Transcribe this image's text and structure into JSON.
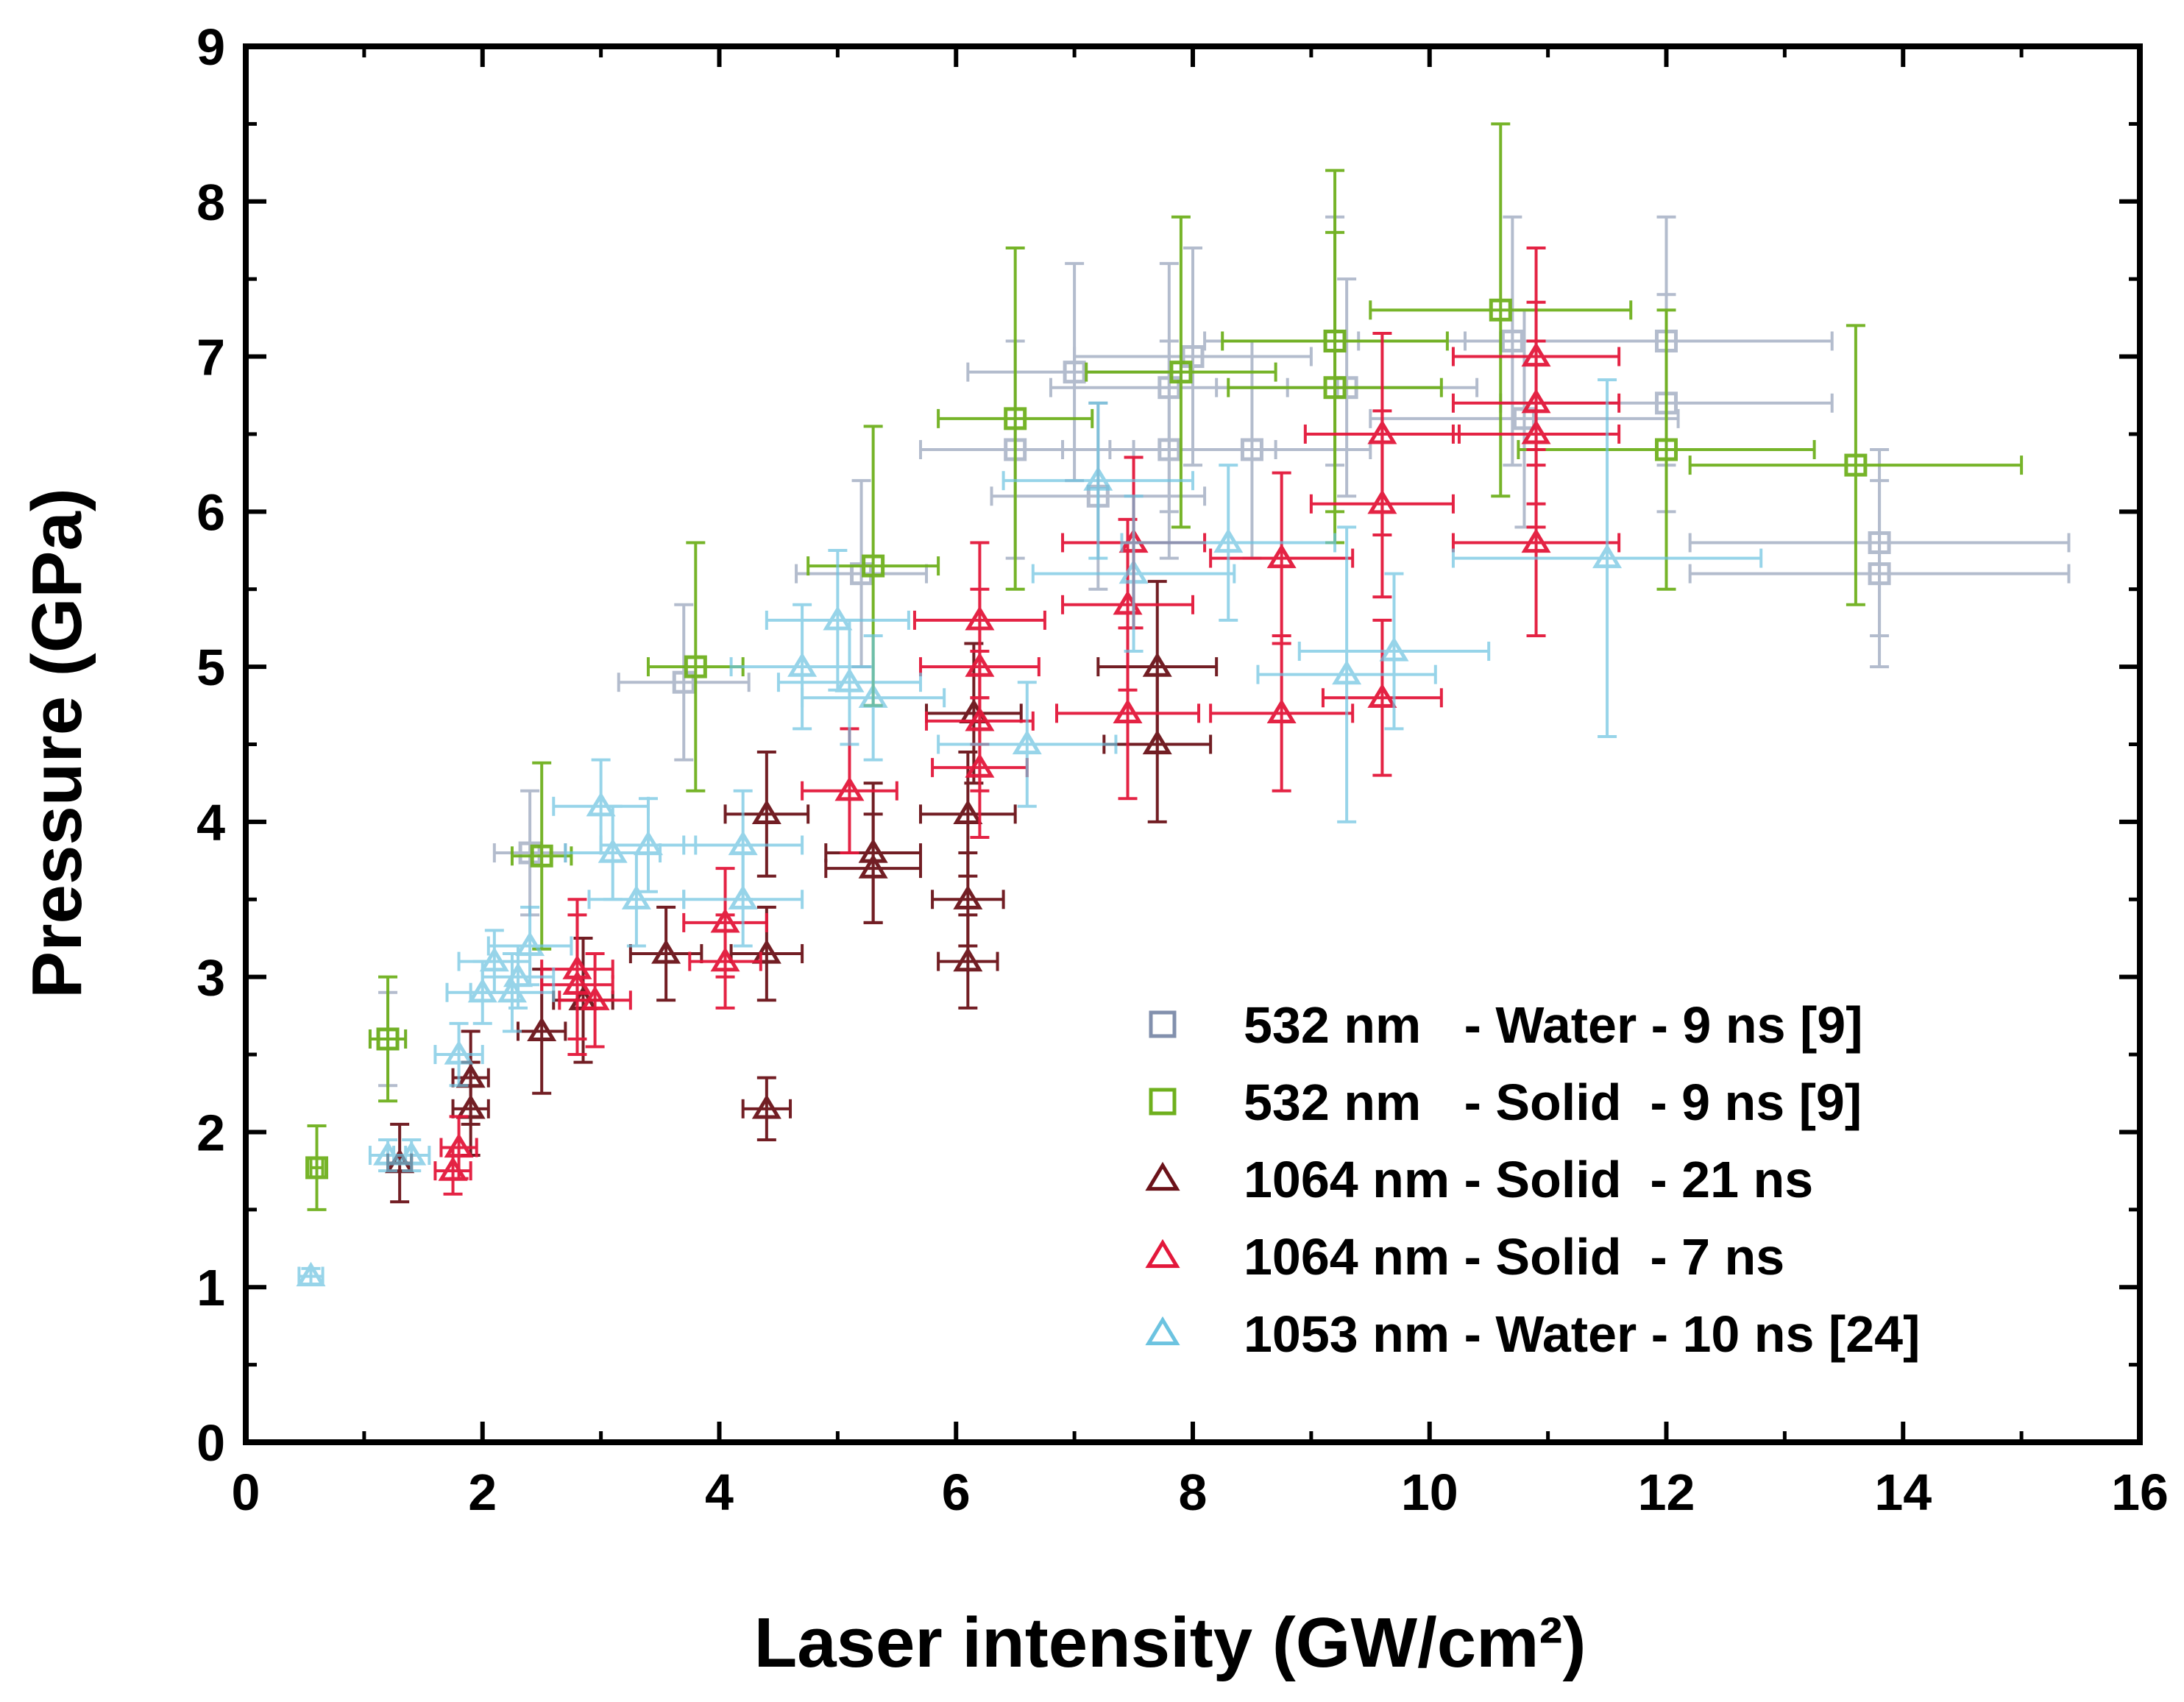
{
  "chart_data": {
    "type": "scatter",
    "title": "",
    "xlabel": "Laser intensity (GW/cm²)",
    "ylabel": "Pressure (GPa)",
    "xlim": [
      0,
      16
    ],
    "ylim": [
      0,
      9
    ],
    "x_ticks": [
      0,
      2,
      4,
      6,
      8,
      10,
      12,
      14,
      16
    ],
    "y_ticks": [
      0,
      1,
      2,
      3,
      4,
      5,
      6,
      7,
      8,
      9
    ],
    "x_tick_labels": [
      "0",
      "2",
      "4",
      "6",
      "8",
      "10",
      "12",
      "14",
      "16"
    ],
    "y_tick_labels": [
      "0",
      "1",
      "2",
      "3",
      "4",
      "5",
      "6",
      "7",
      "8",
      "9"
    ],
    "legend_position": "bottom-right",
    "grid": false,
    "series": [
      {
        "name": "532 nm   - Water - 9 ns [9]",
        "marker": "square",
        "color": "#8290ad",
        "points": [
          {
            "x": 1.2,
            "y": 2.6,
            "xerr": 0.15,
            "yerr": 0.3
          },
          {
            "x": 2.4,
            "y": 3.8,
            "xerr": 0.3,
            "yerr": 0.4
          },
          {
            "x": 3.7,
            "y": 4.9,
            "xerr": 0.55,
            "yerr": 0.5
          },
          {
            "x": 5.2,
            "y": 5.6,
            "xerr": 0.55,
            "yerr": 0.6
          },
          {
            "x": 6.5,
            "y": 6.4,
            "xerr": 0.8,
            "yerr": 0.7
          },
          {
            "x": 7.0,
            "y": 6.9,
            "xerr": 0.9,
            "yerr": 0.7
          },
          {
            "x": 7.2,
            "y": 6.1,
            "xerr": 0.9,
            "yerr": 0.6
          },
          {
            "x": 7.8,
            "y": 6.8,
            "xerr": 1.0,
            "yerr": 0.8
          },
          {
            "x": 7.8,
            "y": 6.4,
            "xerr": 0.9,
            "yerr": 0.7
          },
          {
            "x": 8.0,
            "y": 7.0,
            "xerr": 1.0,
            "yerr": 0.7
          },
          {
            "x": 8.5,
            "y": 6.4,
            "xerr": 1.0,
            "yerr": 0.7
          },
          {
            "x": 9.2,
            "y": 7.1,
            "xerr": 1.1,
            "yerr": 0.8
          },
          {
            "x": 9.3,
            "y": 6.8,
            "xerr": 1.1,
            "yerr": 0.7
          },
          {
            "x": 10.7,
            "y": 7.1,
            "xerr": 1.3,
            "yerr": 0.8
          },
          {
            "x": 10.8,
            "y": 6.6,
            "xerr": 1.3,
            "yerr": 0.7
          },
          {
            "x": 12.0,
            "y": 7.1,
            "xerr": 1.4,
            "yerr": 0.8
          },
          {
            "x": 12.0,
            "y": 6.7,
            "xerr": 1.4,
            "yerr": 0.7
          },
          {
            "x": 13.8,
            "y": 5.8,
            "xerr": 1.6,
            "yerr": 0.6
          },
          {
            "x": 13.8,
            "y": 5.6,
            "xerr": 1.6,
            "yerr": 0.6
          }
        ]
      },
      {
        "name": "532 nm   - Solid  - 9 ns [9]",
        "marker": "square",
        "color": "#6fb01e",
        "points": [
          {
            "x": 0.6,
            "y": 1.77,
            "xerr": 0.05,
            "yerr": 0.27
          },
          {
            "x": 1.2,
            "y": 2.6,
            "xerr": 0.15,
            "yerr": 0.4
          },
          {
            "x": 2.5,
            "y": 3.78,
            "xerr": 0.25,
            "yerr": 0.6
          },
          {
            "x": 3.8,
            "y": 5.0,
            "xerr": 0.4,
            "yerr": 0.8
          },
          {
            "x": 5.3,
            "y": 5.65,
            "xerr": 0.55,
            "yerr": 0.9
          },
          {
            "x": 6.5,
            "y": 6.6,
            "xerr": 0.65,
            "yerr": 1.1
          },
          {
            "x": 7.9,
            "y": 6.9,
            "xerr": 0.8,
            "yerr": 1.0
          },
          {
            "x": 9.2,
            "y": 7.1,
            "xerr": 0.95,
            "yerr": 1.1
          },
          {
            "x": 9.2,
            "y": 6.8,
            "xerr": 0.9,
            "yerr": 1.0
          },
          {
            "x": 10.6,
            "y": 7.3,
            "xerr": 1.1,
            "yerr": 1.2
          },
          {
            "x": 12.0,
            "y": 6.4,
            "xerr": 1.25,
            "yerr": 0.9
          },
          {
            "x": 13.6,
            "y": 6.3,
            "xerr": 1.4,
            "yerr": 0.9
          }
        ]
      },
      {
        "name": "1064 nm - Solid  - 21 ns",
        "marker": "triangle",
        "color": "#6b1219",
        "points": [
          {
            "x": 1.3,
            "y": 1.8,
            "xerr": 0.1,
            "yerr": 0.25
          },
          {
            "x": 1.9,
            "y": 2.15,
            "xerr": 0.15,
            "yerr": 0.3
          },
          {
            "x": 1.9,
            "y": 2.35,
            "xerr": 0.15,
            "yerr": 0.3
          },
          {
            "x": 2.5,
            "y": 2.65,
            "xerr": 0.2,
            "yerr": 0.4
          },
          {
            "x": 2.85,
            "y": 2.85,
            "xerr": 0.25,
            "yerr": 0.4
          },
          {
            "x": 3.55,
            "y": 3.15,
            "xerr": 0.3,
            "yerr": 0.3
          },
          {
            "x": 4.4,
            "y": 2.15,
            "xerr": 0.2,
            "yerr": 0.2
          },
          {
            "x": 4.4,
            "y": 3.15,
            "xerr": 0.3,
            "yerr": 0.3
          },
          {
            "x": 4.4,
            "y": 4.05,
            "xerr": 0.35,
            "yerr": 0.4
          },
          {
            "x": 5.3,
            "y": 3.8,
            "xerr": 0.4,
            "yerr": 0.45
          },
          {
            "x": 5.3,
            "y": 3.7,
            "xerr": 0.4,
            "yerr": 0.35
          },
          {
            "x": 6.1,
            "y": 3.1,
            "xerr": 0.25,
            "yerr": 0.3
          },
          {
            "x": 6.1,
            "y": 3.5,
            "xerr": 0.3,
            "yerr": 0.3
          },
          {
            "x": 6.1,
            "y": 4.05,
            "xerr": 0.4,
            "yerr": 0.4
          },
          {
            "x": 6.15,
            "y": 4.7,
            "xerr": 0.4,
            "yerr": 0.45
          },
          {
            "x": 7.7,
            "y": 4.5,
            "xerr": 0.45,
            "yerr": 0.5
          },
          {
            "x": 7.7,
            "y": 5.0,
            "xerr": 0.5,
            "yerr": 0.55
          }
        ]
      },
      {
        "name": "1064 nm - Solid  - 7 ns",
        "marker": "triangle",
        "color": "#e3183b",
        "points": [
          {
            "x": 1.75,
            "y": 1.75,
            "xerr": 0.15,
            "yerr": 0.15
          },
          {
            "x": 1.8,
            "y": 1.9,
            "xerr": 0.15,
            "yerr": 0.2
          },
          {
            "x": 2.8,
            "y": 2.95,
            "xerr": 0.3,
            "yerr": 0.45
          },
          {
            "x": 2.8,
            "y": 3.05,
            "xerr": 0.3,
            "yerr": 0.45
          },
          {
            "x": 2.95,
            "y": 2.85,
            "xerr": 0.3,
            "yerr": 0.3
          },
          {
            "x": 4.05,
            "y": 3.1,
            "xerr": 0.3,
            "yerr": 0.3
          },
          {
            "x": 4.05,
            "y": 3.35,
            "xerr": 0.35,
            "yerr": 0.35
          },
          {
            "x": 5.1,
            "y": 4.2,
            "xerr": 0.4,
            "yerr": 0.4
          },
          {
            "x": 6.2,
            "y": 4.35,
            "xerr": 0.4,
            "yerr": 0.45
          },
          {
            "x": 6.2,
            "y": 4.65,
            "xerr": 0.45,
            "yerr": 0.45
          },
          {
            "x": 6.2,
            "y": 5.0,
            "xerr": 0.5,
            "yerr": 0.5
          },
          {
            "x": 6.2,
            "y": 5.3,
            "xerr": 0.55,
            "yerr": 0.5
          },
          {
            "x": 7.45,
            "y": 4.7,
            "xerr": 0.6,
            "yerr": 0.55
          },
          {
            "x": 7.45,
            "y": 5.4,
            "xerr": 0.55,
            "yerr": 0.55
          },
          {
            "x": 7.5,
            "y": 5.8,
            "xerr": 0.6,
            "yerr": 0.55
          },
          {
            "x": 8.75,
            "y": 4.7,
            "xerr": 0.6,
            "yerr": 0.5
          },
          {
            "x": 8.75,
            "y": 5.7,
            "xerr": 0.6,
            "yerr": 0.55
          },
          {
            "x": 9.6,
            "y": 4.8,
            "xerr": 0.5,
            "yerr": 0.5
          },
          {
            "x": 9.6,
            "y": 6.05,
            "xerr": 0.6,
            "yerr": 0.6
          },
          {
            "x": 9.6,
            "y": 6.5,
            "xerr": 0.65,
            "yerr": 0.65
          },
          {
            "x": 10.9,
            "y": 5.8,
            "xerr": 0.7,
            "yerr": 0.6
          },
          {
            "x": 10.9,
            "y": 6.5,
            "xerr": 0.7,
            "yerr": 0.6
          },
          {
            "x": 10.9,
            "y": 6.7,
            "xerr": 0.7,
            "yerr": 0.65
          },
          {
            "x": 10.9,
            "y": 7.0,
            "xerr": 0.7,
            "yerr": 0.7
          }
        ]
      },
      {
        "name": "1053 nm - Water - 10 ns [24]",
        "marker": "triangle",
        "color": "#6cc3e0",
        "points": [
          {
            "x": 0.55,
            "y": 1.07,
            "xerr": 0.1,
            "yerr": 0.05
          },
          {
            "x": 1.2,
            "y": 1.85,
            "xerr": 0.15,
            "yerr": 0.1
          },
          {
            "x": 1.4,
            "y": 1.85,
            "xerr": 0.15,
            "yerr": 0.1
          },
          {
            "x": 1.8,
            "y": 2.5,
            "xerr": 0.2,
            "yerr": 0.2
          },
          {
            "x": 2.0,
            "y": 2.9,
            "xerr": 0.3,
            "yerr": 0.2
          },
          {
            "x": 2.1,
            "y": 3.1,
            "xerr": 0.3,
            "yerr": 0.2
          },
          {
            "x": 2.25,
            "y": 2.9,
            "xerr": 0.35,
            "yerr": 0.25
          },
          {
            "x": 2.3,
            "y": 3.0,
            "xerr": 0.3,
            "yerr": 0.2
          },
          {
            "x": 2.4,
            "y": 3.2,
            "xerr": 0.35,
            "yerr": 0.25
          },
          {
            "x": 3.0,
            "y": 4.1,
            "xerr": 0.4,
            "yerr": 0.3
          },
          {
            "x": 3.1,
            "y": 3.8,
            "xerr": 0.4,
            "yerr": 0.3
          },
          {
            "x": 3.3,
            "y": 3.5,
            "xerr": 0.4,
            "yerr": 0.3
          },
          {
            "x": 3.4,
            "y": 3.85,
            "xerr": 0.4,
            "yerr": 0.3
          },
          {
            "x": 4.2,
            "y": 3.5,
            "xerr": 0.5,
            "yerr": 0.3
          },
          {
            "x": 4.2,
            "y": 3.85,
            "xerr": 0.5,
            "yerr": 0.35
          },
          {
            "x": 4.7,
            "y": 5.0,
            "xerr": 0.6,
            "yerr": 0.4
          },
          {
            "x": 5.0,
            "y": 5.3,
            "xerr": 0.6,
            "yerr": 0.45
          },
          {
            "x": 5.1,
            "y": 4.9,
            "xerr": 0.6,
            "yerr": 0.4
          },
          {
            "x": 5.3,
            "y": 4.8,
            "xerr": 0.6,
            "yerr": 0.4
          },
          {
            "x": 6.6,
            "y": 4.5,
            "xerr": 0.75,
            "yerr": 0.4
          },
          {
            "x": 7.2,
            "y": 6.2,
            "xerr": 0.8,
            "yerr": 0.5
          },
          {
            "x": 7.5,
            "y": 5.6,
            "xerr": 0.85,
            "yerr": 0.5
          },
          {
            "x": 8.3,
            "y": 5.8,
            "xerr": 0.9,
            "yerr": 0.5
          },
          {
            "x": 9.3,
            "y": 4.95,
            "xerr": 0.75,
            "yerr": 0.95
          },
          {
            "x": 9.7,
            "y": 5.1,
            "xerr": 0.8,
            "yerr": 0.5
          },
          {
            "x": 11.5,
            "y": 5.7,
            "xerr": 1.3,
            "yerr": 1.15
          }
        ]
      }
    ]
  }
}
